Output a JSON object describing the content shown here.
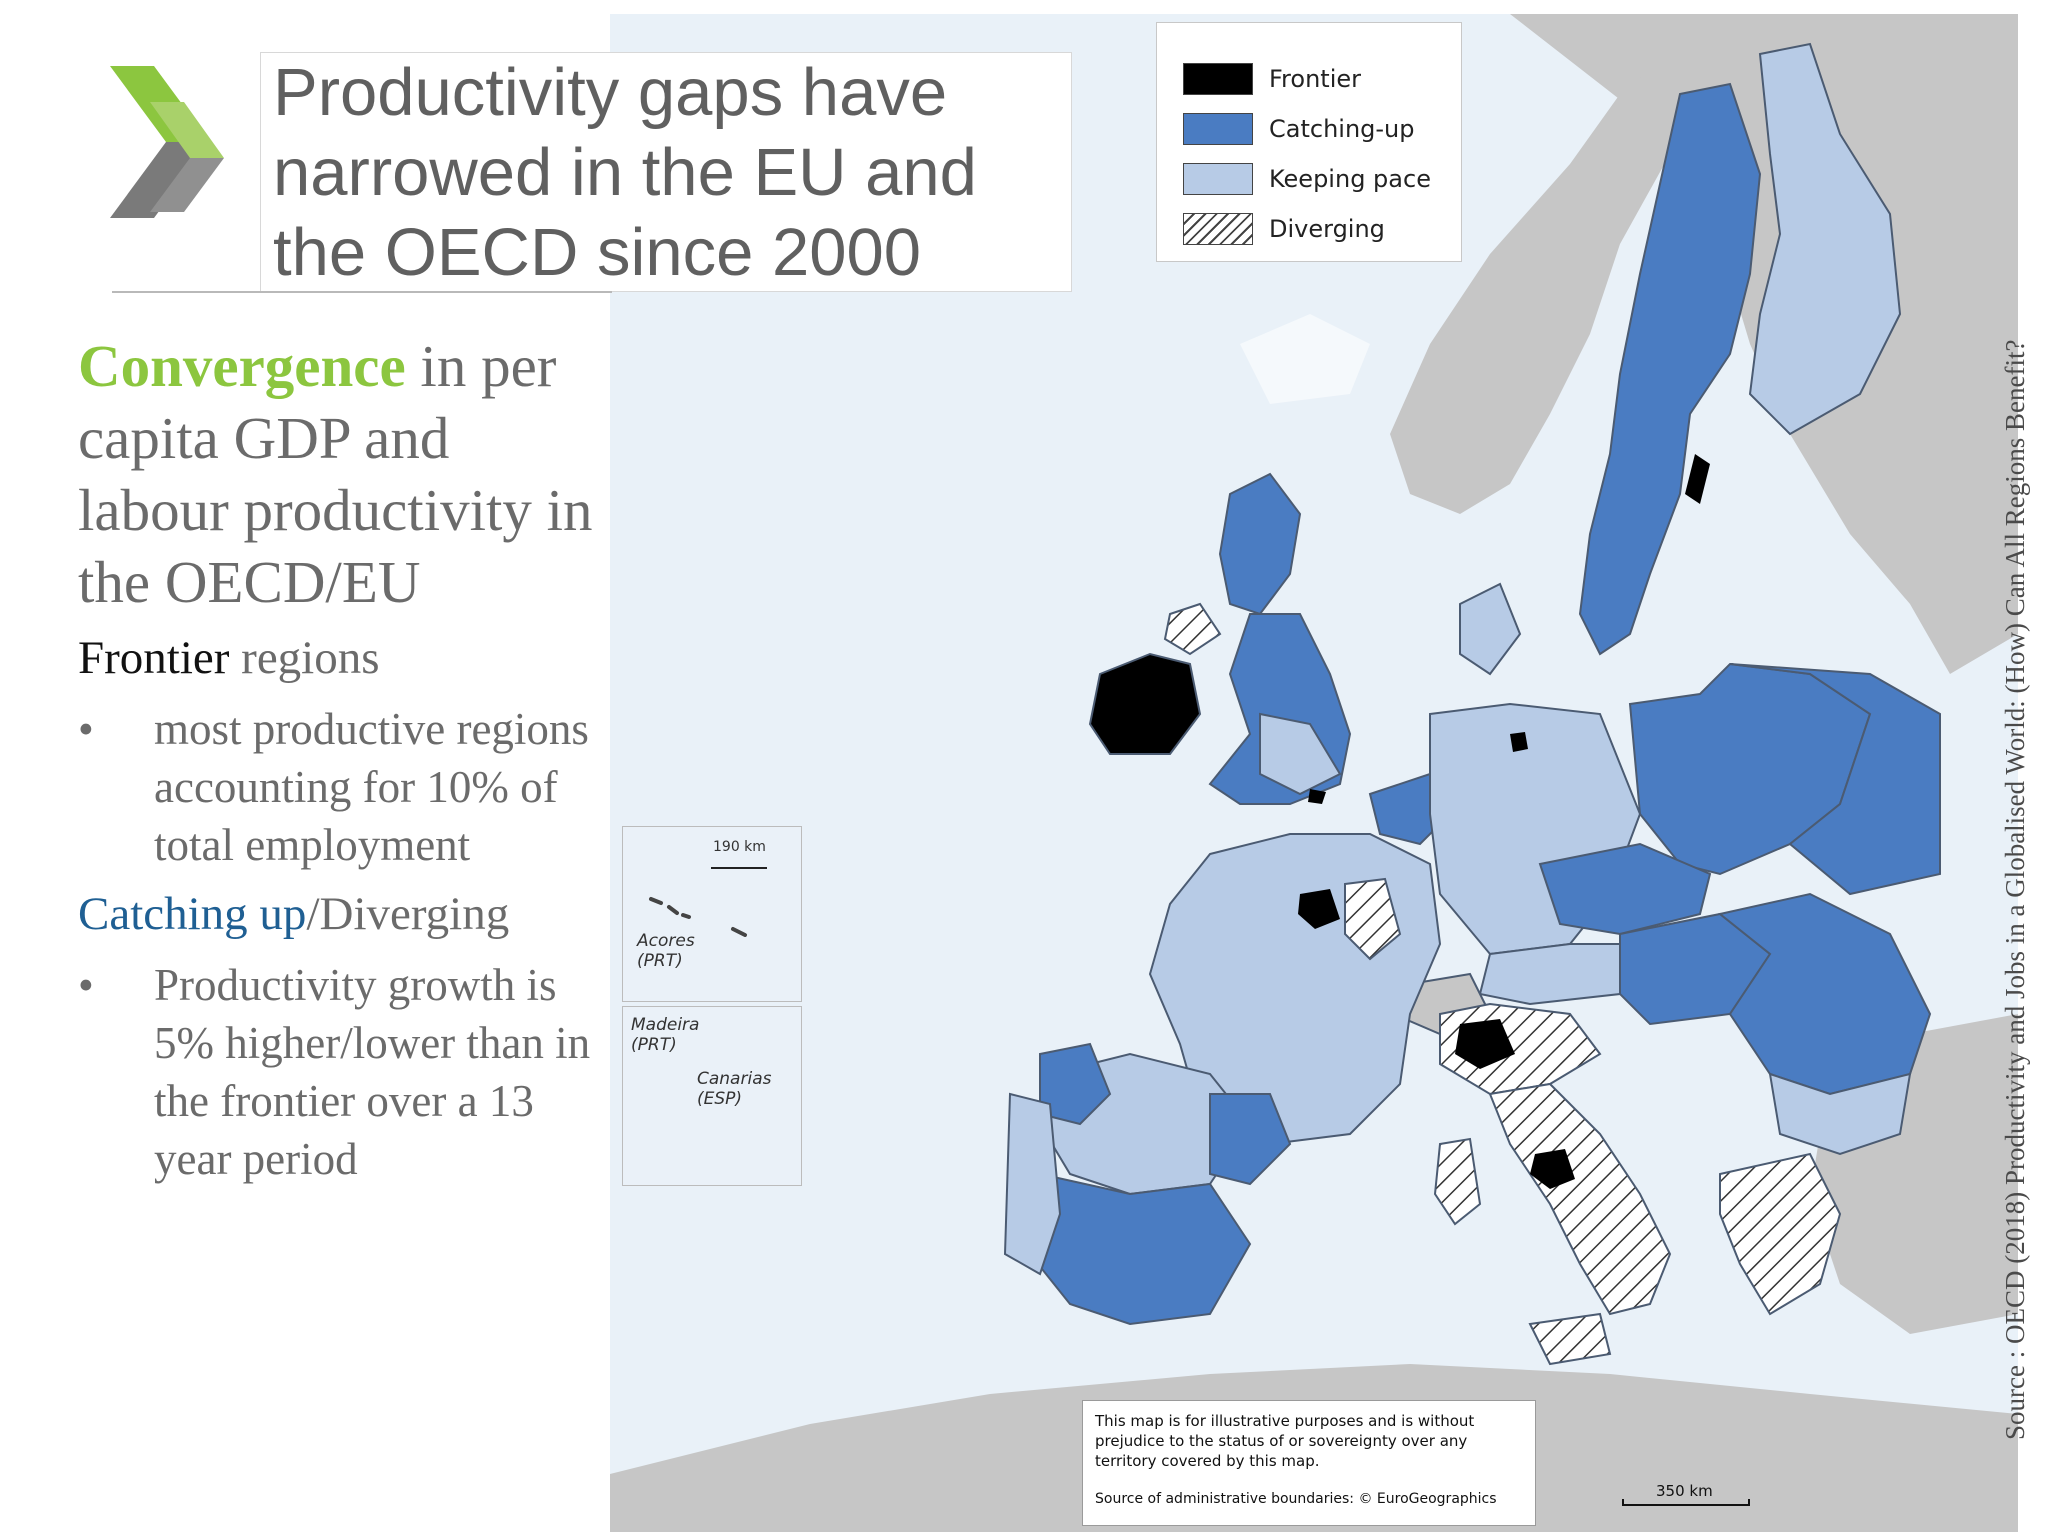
{
  "title": {
    "lines": [
      "Productivity gaps have",
      "narrowed in the EU and",
      "the OECD since 2000"
    ]
  },
  "left": {
    "heading_highlight": "Convergence",
    "heading_rest": " in per capita GDP and labour productivity in the OECD/EU",
    "frontier_dark": "Frontier",
    "frontier_rest": " regions",
    "bullet_marker": "•",
    "frontier_bullet": "most productive regions  accounting for 10% of  total employment",
    "catching_blue": "Catching up",
    "catching_rest": "/Diverging",
    "catching_bullet": "Productivity growth is 5% higher/lower than in the frontier over a 13 year period"
  },
  "legend": {
    "items": [
      {
        "label": "Frontier",
        "color": "#000000"
      },
      {
        "label": "Catching-up",
        "color": "#4a7cc2"
      },
      {
        "label": "Keeping pace",
        "color": "#b7cbe6"
      },
      {
        "label": "Diverging",
        "color": "hatched"
      }
    ]
  },
  "insets": {
    "azores_scale": "190 km",
    "azores_label": "Acores\n(PRT)",
    "madeira_label": "Madeira\n(PRT)",
    "canarias_label": "Canarias\n(ESP)"
  },
  "map": {
    "sea_color": "#e9f1f8",
    "land_nonmember_color": "#c6c6c6",
    "border_color": "#4b5b72"
  },
  "disclaimer": {
    "text": "This map is for illustrative purposes and is without prejudice to the status of or sovereignty over any territory covered by this map.",
    "source": "Source of administrative boundaries: © EuroGeographics"
  },
  "scale_bar": "350 km",
  "source_note": "Source : OECD (2018) Productivity and Jobs in a Globalised World: (How) Can All Regions Benefit?"
}
